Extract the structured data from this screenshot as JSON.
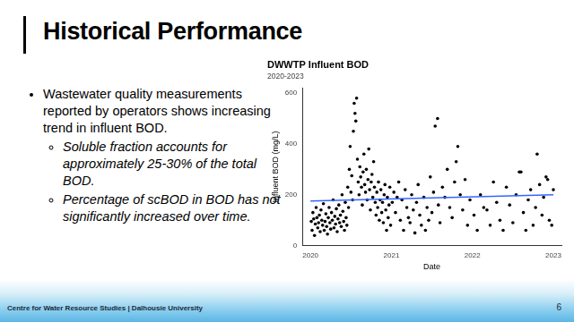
{
  "slide": {
    "title": "Historical Performance",
    "bullets": [
      {
        "text": "Wastewater quality measurements reported by operators shows increasing trend in influent BOD.",
        "sub": [
          "Soluble fraction accounts for approximately 25-30% of the total BOD.",
          "Percentage of scBOD in BOD has not significantly increased over time."
        ]
      }
    ],
    "footer": "Centre for Water Resource Studies | Dalhousie University",
    "page_number": 6
  },
  "chart_data": {
    "type": "scatter",
    "title": "DWWTP Influent BOD",
    "subtitle": "2020-2023",
    "x_label": "Date",
    "y_label": "Influent BOD (mg/L)",
    "xlim": [
      2019.9,
      2023.1
    ],
    "xticks": [
      2020,
      2021,
      2022,
      2023
    ],
    "ylim": [
      0,
      620
    ],
    "yticks": [
      0,
      200,
      400,
      600
    ],
    "grid": false,
    "series": [
      {
        "type": "scatter",
        "color": "#000000",
        "marker": "circle",
        "x": [
          2020.01,
          2020.02,
          2020.03,
          2020.04,
          2020.05,
          2020.06,
          2020.07,
          2020.08,
          2020.09,
          2020.1,
          2020.11,
          2020.12,
          2020.13,
          2020.14,
          2020.15,
          2020.16,
          2020.17,
          2020.18,
          2020.19,
          2020.2,
          2020.21,
          2020.22,
          2020.23,
          2020.24,
          2020.25,
          2020.26,
          2020.27,
          2020.28,
          2020.29,
          2020.3,
          2020.31,
          2020.32,
          2020.33,
          2020.34,
          2020.35,
          2020.36,
          2020.37,
          2020.38,
          2020.39,
          2020.4,
          2020.41,
          2020.42,
          2020.43,
          2020.44,
          2020.45,
          2020.46,
          2020.47,
          2020.48,
          2020.49,
          2020.5,
          2020.51,
          2020.52,
          2020.53,
          2020.54,
          2020.55,
          2020.56,
          2020.57,
          2020.58,
          2020.59,
          2020.6,
          2020.61,
          2020.62,
          2020.63,
          2020.64,
          2020.65,
          2020.66,
          2020.67,
          2020.68,
          2020.69,
          2020.7,
          2020.71,
          2020.72,
          2020.73,
          2020.74,
          2020.75,
          2020.76,
          2020.77,
          2020.78,
          2020.79,
          2020.8,
          2020.81,
          2020.82,
          2020.83,
          2020.84,
          2020.85,
          2020.86,
          2020.87,
          2020.88,
          2020.89,
          2020.9,
          2020.91,
          2020.92,
          2020.93,
          2020.94,
          2020.95,
          2020.96,
          2020.97,
          2020.98,
          2020.99,
          2021.01,
          2021.03,
          2021.05,
          2021.07,
          2021.09,
          2021.11,
          2021.13,
          2021.15,
          2021.17,
          2021.19,
          2021.21,
          2021.23,
          2021.25,
          2021.27,
          2021.29,
          2021.31,
          2021.33,
          2021.35,
          2021.37,
          2021.4,
          2021.42,
          2021.44,
          2021.46,
          2021.48,
          2021.5,
          2021.52,
          2021.54,
          2021.57,
          2021.58,
          2021.6,
          2021.63,
          2021.66,
          2021.69,
          2021.72,
          2021.75,
          2021.78,
          2021.8,
          2021.82,
          2021.85,
          2021.88,
          2021.91,
          2021.94,
          2021.97,
          2022.02,
          2022.06,
          2022.1,
          2022.14,
          2022.18,
          2022.22,
          2022.26,
          2022.3,
          2022.34,
          2022.38,
          2022.42,
          2022.46,
          2022.5,
          2022.54,
          2022.58,
          2022.6,
          2022.63,
          2022.66,
          2022.69,
          2022.72,
          2022.75,
          2022.78,
          2022.8,
          2022.83,
          2022.86,
          2022.88,
          2022.91,
          2022.93,
          2022.95,
          2022.98,
          2023.0
        ],
        "values": [
          95,
          60,
          130,
          105,
          40,
          85,
          150,
          110,
          70,
          90,
          120,
          55,
          140,
          100,
          80,
          165,
          60,
          95,
          125,
          75,
          45,
          110,
          150,
          90,
          65,
          130,
          100,
          180,
          70,
          115,
          85,
          145,
          55,
          105,
          160,
          90,
          120,
          75,
          200,
          135,
          95,
          60,
          170,
          110,
          80,
          230,
          150,
          300,
          390,
          210,
          275,
          180,
          450,
          560,
          520,
          490,
          580,
          340,
          250,
          200,
          310,
          270,
          230,
          160,
          290,
          360,
          240,
          210,
          300,
          180,
          260,
          380,
          220,
          140,
          250,
          280,
          190,
          330,
          230,
          170,
          120,
          210,
          150,
          250,
          100,
          180,
          220,
          130,
          170,
          90,
          200,
          240,
          140,
          60,
          190,
          110,
          160,
          230,
          80,
          170,
          210,
          130,
          190,
          250,
          100,
          180,
          60,
          220,
          150,
          110,
          90,
          200,
          140,
          50,
          170,
          240,
          120,
          80,
          190,
          60,
          150,
          100,
          270,
          130,
          210,
          470,
          500,
          160,
          90,
          230,
          190,
          300,
          150,
          110,
          250,
          330,
          390,
          200,
          140,
          260,
          80,
          180,
          120,
          60,
          200,
          150,
          140,
          80,
          250,
          170,
          100,
          60,
          230,
          160,
          90,
          200,
          290,
          290,
          130,
          60,
          180,
          220,
          80,
          150,
          360,
          240,
          120,
          190,
          270,
          260,
          100,
          80,
          220
        ]
      },
      {
        "type": "line",
        "color": "#3366ff",
        "line_style": "solid",
        "x": [
          2020,
          2023
        ],
        "values": [
          175,
          200
        ]
      }
    ]
  }
}
